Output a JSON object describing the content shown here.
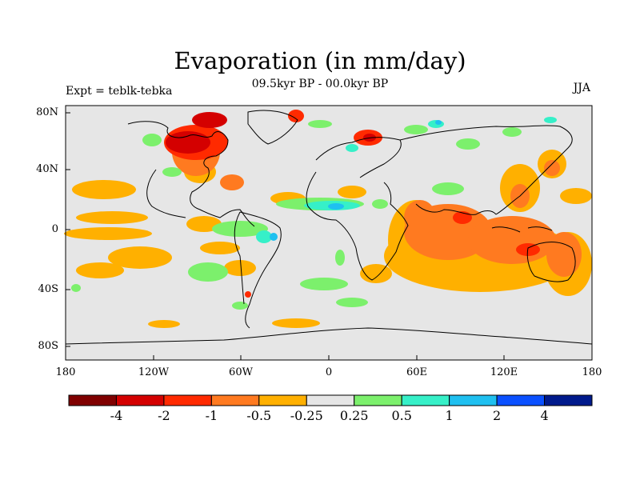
{
  "title": "Evaporation (in mm/day)",
  "subtitle": "09.5kyr BP - 00.0kyr BP",
  "left_label": "Expt = teblk-tebka",
  "right_label": "JJA",
  "map": {
    "background": "#e6e6e6",
    "coastline_color": "#000000",
    "y_ticks": [
      "80N",
      "40N",
      "0",
      "40S",
      "80S"
    ],
    "x_ticks": [
      "180",
      "120W",
      "60W",
      "0",
      "60E",
      "120E",
      "180"
    ]
  },
  "colorbar": {
    "colors": [
      "#800000",
      "#d40000",
      "#ff2a00",
      "#ff7a20",
      "#ffb000",
      "#e6e6e6",
      "#7cf06c",
      "#36f0c8",
      "#1fc0f0",
      "#0a50ff",
      "#001a8c"
    ],
    "labels": [
      "-4",
      "-2",
      "-1",
      "-0.5",
      "-0.25",
      "0.25",
      "0.5",
      "1",
      "2",
      "4"
    ]
  }
}
